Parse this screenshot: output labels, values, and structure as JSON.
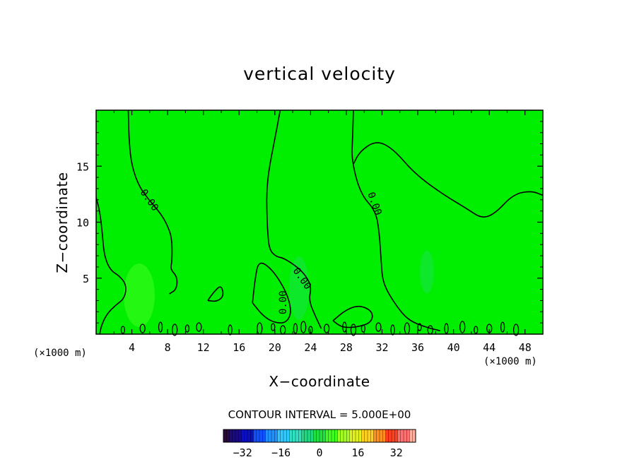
{
  "chart_data": {
    "type": "heatmap",
    "title": "vertical velocity",
    "xlabel": "X−coordinate",
    "ylabel": "Z−coordinate",
    "x_unit": "(×1000 m)",
    "x_unit_right": "(×1000 m)",
    "xlim": [
      0,
      50
    ],
    "ylim": [
      0,
      20
    ],
    "xticks": [
      4,
      8,
      12,
      16,
      20,
      24,
      28,
      32,
      36,
      40,
      44,
      48
    ],
    "xtick_labels": [
      "4",
      "8",
      "12",
      "16",
      "20",
      "24",
      "28",
      "32",
      "36",
      "40",
      "44",
      "48"
    ],
    "yticks": [
      5,
      10,
      15
    ],
    "ytick_labels": [
      "5",
      "10",
      "15"
    ],
    "background_value": 0,
    "field_color": "#00ee00",
    "contour_interval_text": "CONTOUR INTERVAL = 5.000E+00",
    "contour_interval": 5,
    "contour_line_labels": [
      "0.00",
      "0.00",
      "0.00",
      "0.00"
    ],
    "zero_contours": [
      {
        "points": [
          [
            3.6,
            20
          ],
          [
            3.7,
            17
          ],
          [
            4.0,
            15
          ],
          [
            4.8,
            13.2
          ],
          [
            5.9,
            12
          ],
          [
            7.2,
            10.8
          ],
          [
            8.0,
            9.7
          ],
          [
            8.5,
            8.5
          ],
          [
            8.5,
            6.5
          ],
          [
            8.3,
            5.8
          ],
          [
            9.1,
            5.1
          ],
          [
            9.0,
            4.0
          ],
          [
            8.2,
            3.6
          ]
        ]
      },
      {
        "points": [
          [
            0,
            12.2
          ],
          [
            0.4,
            11
          ],
          [
            0.7,
            9
          ],
          [
            0.9,
            7
          ],
          [
            1.6,
            5.7
          ],
          [
            2.6,
            5.2
          ],
          [
            3.4,
            4.4
          ],
          [
            3.2,
            3.2
          ],
          [
            2.2,
            2.6
          ],
          [
            1.2,
            1.8
          ],
          [
            0.6,
            0.8
          ],
          [
            0.4,
            0
          ]
        ]
      },
      {
        "points": [
          [
            20.6,
            20
          ],
          [
            19.9,
            17
          ],
          [
            19.4,
            15
          ],
          [
            19.1,
            13
          ],
          [
            19.1,
            11
          ],
          [
            19.2,
            9
          ],
          [
            19.4,
            7.5
          ],
          [
            20.2,
            6.9
          ],
          [
            21.0,
            6.8
          ],
          [
            22.5,
            6.0
          ],
          [
            23.5,
            5.2
          ],
          [
            24.1,
            4.2
          ],
          [
            23.8,
            3.0
          ],
          [
            24.6,
            1.5
          ],
          [
            25.2,
            0.5
          ]
        ]
      },
      {
        "points": [
          [
            28.8,
            20
          ],
          [
            28.7,
            17.5
          ],
          [
            28.6,
            15.5
          ],
          [
            29.6,
            12.5
          ],
          [
            31.3,
            11
          ],
          [
            31.7,
            9
          ],
          [
            31.9,
            6.5
          ],
          [
            32.1,
            4.5
          ],
          [
            33.6,
            2.5
          ],
          [
            35.0,
            1.2
          ],
          [
            37.0,
            0.6
          ],
          [
            38.5,
            0.3
          ]
        ]
      },
      {
        "points": [
          [
            28.8,
            15.2
          ],
          [
            29.5,
            16.3
          ],
          [
            31.3,
            17.3
          ],
          [
            33.2,
            16.6
          ],
          [
            35.7,
            14.3
          ],
          [
            38.8,
            12.5
          ],
          [
            41.5,
            11.2
          ],
          [
            43.2,
            10.3
          ],
          [
            44.7,
            10.8
          ],
          [
            46.7,
            12.5
          ],
          [
            48.7,
            12.8
          ],
          [
            50,
            12.4
          ]
        ]
      },
      {
        "points": [
          [
            17.5,
            2.8
          ],
          [
            17.8,
            5.0
          ],
          [
            18.2,
            6.6
          ],
          [
            19.7,
            5.8
          ],
          [
            21.3,
            3.8
          ],
          [
            21.9,
            2.0
          ],
          [
            21.3,
            1.0
          ],
          [
            20.0,
            1.0
          ],
          [
            18.7,
            1.6
          ],
          [
            17.5,
            2.8
          ]
        ]
      },
      {
        "points": [
          [
            12.5,
            3.0
          ],
          [
            13.2,
            3.8
          ],
          [
            14.0,
            4.4
          ],
          [
            14.3,
            3.4
          ],
          [
            13.5,
            2.9
          ],
          [
            12.5,
            3.0
          ]
        ]
      },
      {
        "points": [
          [
            26.5,
            1.2
          ],
          [
            28.0,
            2.2
          ],
          [
            29.5,
            2.6
          ],
          [
            31.0,
            2.0
          ],
          [
            30.8,
            1.0
          ],
          [
            29.0,
            0.6
          ],
          [
            27.5,
            0.6
          ],
          [
            26.5,
            1.2
          ]
        ]
      }
    ],
    "colorbar": {
      "ticks": [
        -32,
        -16,
        0,
        16,
        32
      ],
      "tick_labels": [
        "−32",
        "−16",
        "0",
        "16",
        "32"
      ],
      "range": [
        -40,
        40
      ],
      "colors": [
        "#2a0a3d",
        "#1a0a80",
        "#0a10c0",
        "#1050ff",
        "#2090ff",
        "#30c8ff",
        "#30e0c0",
        "#20d880",
        "#20e040",
        "#40ff20",
        "#a0ff20",
        "#e0f020",
        "#ffd020",
        "#ff9020",
        "#ff4020",
        "#ff7070",
        "#ffb0a0"
      ]
    }
  }
}
